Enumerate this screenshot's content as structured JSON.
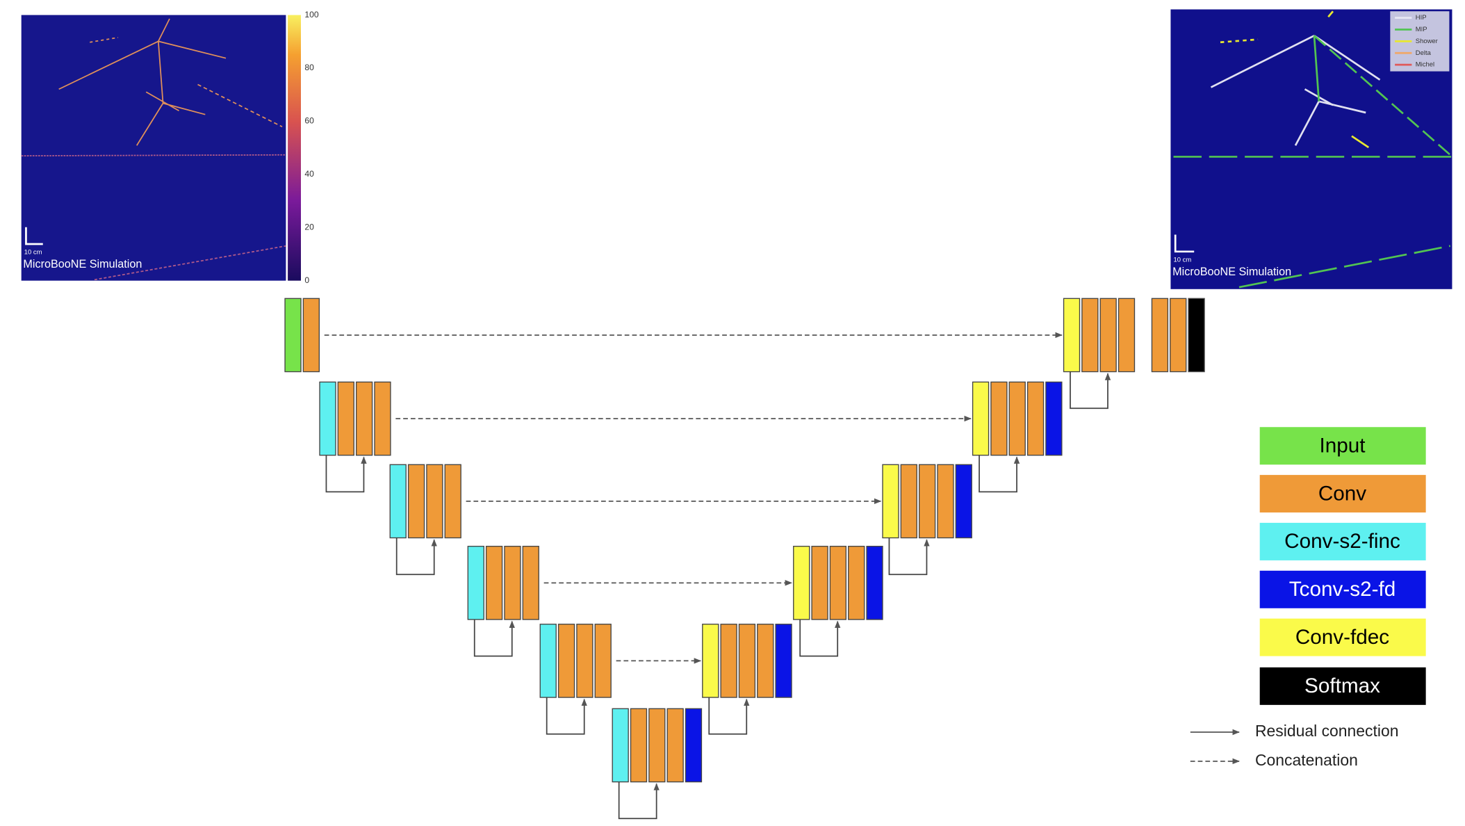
{
  "input_image": {
    "scale_label": "10 cm",
    "caption": "MicroBooNE Simulation",
    "colorbar_ticks": [
      0,
      20,
      40,
      60,
      80,
      100
    ]
  },
  "output_image": {
    "scale_label": "10 cm",
    "caption": "MicroBooNE Simulation",
    "legend": [
      {
        "label": "HIP",
        "color": "#e8e8f4"
      },
      {
        "label": "MIP",
        "color": "#52c452"
      },
      {
        "label": "Shower",
        "color": "#e8e830"
      },
      {
        "label": "Delta",
        "color": "#f0a868"
      },
      {
        "label": "Michel",
        "color": "#e05a5a"
      }
    ]
  },
  "legend": {
    "items": [
      {
        "label": "Input",
        "color": "#77e34a",
        "text_color": "#000000"
      },
      {
        "label": "Conv",
        "color": "#ef9a38",
        "text_color": "#000000"
      },
      {
        "label": "Conv-s2-finc",
        "color": "#5ef0f0",
        "text_color": "#000000"
      },
      {
        "label": "Tconv-s2-fd",
        "color": "#0a14e6",
        "text_color": "#ffffff"
      },
      {
        "label": "Conv-fdec",
        "color": "#fafa4a",
        "text_color": "#000000"
      },
      {
        "label": "Softmax",
        "color": "#000000",
        "text_color": "#ffffff"
      }
    ],
    "lines": [
      "Residual connection",
      "Concatenation"
    ]
  }
}
